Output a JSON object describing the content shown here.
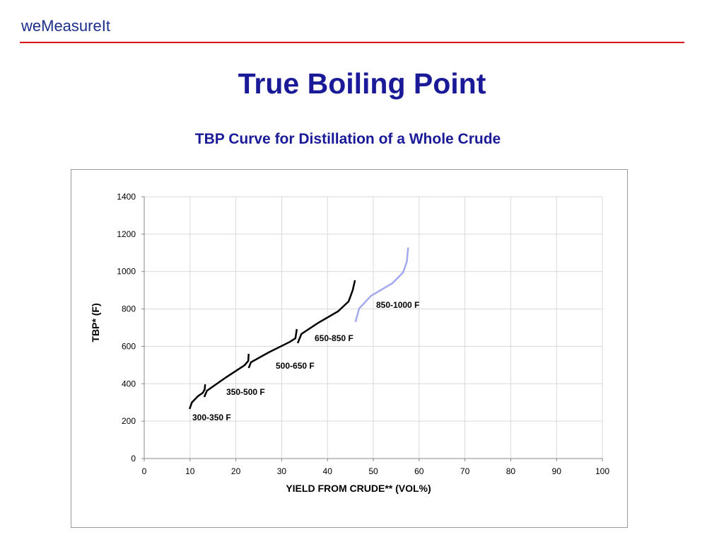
{
  "header": {
    "logo": "weMeasureIt",
    "title": "True Boiling Point"
  },
  "chart_data": {
    "type": "line",
    "title": "TBP Curve for Distillation of a Whole Crude",
    "x_label": "YIELD FROM CRUDE** (VOL%)",
    "y_label": "TBP*  (F)",
    "xlim": [
      0,
      100
    ],
    "xticks": [
      0,
      10,
      20,
      30,
      40,
      50,
      60,
      70,
      80,
      90,
      100
    ],
    "ylim": [
      0,
      1400
    ],
    "yticks": [
      0,
      200,
      400,
      600,
      800,
      1000,
      1200,
      1400
    ],
    "grid": true,
    "series": [
      {
        "name": "300-350 F",
        "color": "#000000",
        "x": [
          9.9,
          10.4,
          11.7,
          12.8,
          13.2,
          13.3
        ],
        "values": [
          265,
          300,
          333,
          352,
          370,
          397
        ]
      },
      {
        "name": "350-500 F",
        "color": "#000000",
        "x": [
          13.1,
          13.7,
          17.9,
          21.9,
          22.7,
          22.8
        ],
        "values": [
          329,
          363,
          435,
          499,
          522,
          560
        ]
      },
      {
        "name": "500-650 F",
        "color": "#000000",
        "x": [
          22.8,
          23.3,
          27.2,
          31.8,
          33.0,
          33.3
        ],
        "values": [
          484,
          515,
          568,
          624,
          643,
          692
        ]
      },
      {
        "name": "650-850 F",
        "color": "#000000",
        "x": [
          33.5,
          34.3,
          38.0,
          42.3,
          44.6,
          45.5,
          46.0
        ],
        "values": [
          617,
          666,
          726,
          787,
          840,
          900,
          953
        ]
      },
      {
        "name": "850-1000 F",
        "color": "#a3a9f0",
        "x": [
          46.1,
          46.9,
          49.5,
          54.2,
          56.5,
          57.3,
          57.6
        ],
        "values": [
          730,
          802,
          870,
          938,
          995,
          1052,
          1128
        ]
      }
    ]
  }
}
